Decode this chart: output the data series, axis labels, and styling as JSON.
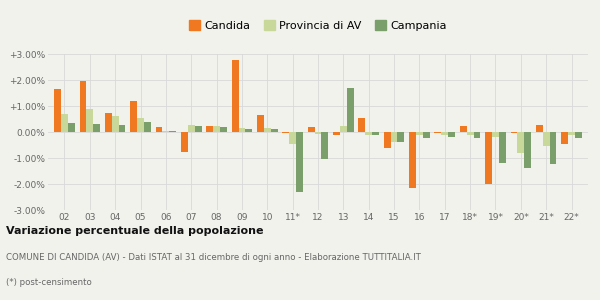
{
  "categories": [
    "02",
    "03",
    "04",
    "05",
    "06",
    "07",
    "08",
    "09",
    "10",
    "11*",
    "12",
    "13",
    "14",
    "15",
    "16",
    "17",
    "18*",
    "19*",
    "20*",
    "21*",
    "22*"
  ],
  "candida": [
    1.65,
    1.95,
    0.72,
    1.18,
    0.18,
    -0.78,
    0.22,
    2.75,
    0.65,
    -0.05,
    0.18,
    -0.12,
    0.55,
    -0.6,
    -2.15,
    -0.03,
    0.22,
    -2.0,
    -0.05,
    0.28,
    -0.45
  ],
  "provincia": [
    0.7,
    0.9,
    0.6,
    0.52,
    0.02,
    0.28,
    0.25,
    0.15,
    0.15,
    -0.48,
    -0.08,
    0.22,
    -0.12,
    -0.4,
    -0.12,
    -0.12,
    -0.1,
    -0.2,
    -0.82,
    -0.52,
    -0.1
  ],
  "campania": [
    0.35,
    0.32,
    0.28,
    0.38,
    0.02,
    0.22,
    0.2,
    0.1,
    0.1,
    -2.3,
    -1.05,
    1.7,
    -0.12,
    -0.38,
    -0.22,
    -0.2,
    -0.22,
    -1.18,
    -1.38,
    -1.22,
    -0.22
  ],
  "color_candida": "#f07820",
  "color_provincia": "#c8d89a",
  "color_campania": "#7a9f6a",
  "ylim": [
    -3.0,
    3.0
  ],
  "yticks": [
    -3.0,
    -2.0,
    -1.0,
    0.0,
    1.0,
    2.0,
    3.0
  ],
  "ytick_labels": [
    "-3.00%",
    "-2.00%",
    "-1.00%",
    "0.00%",
    "+1.00%",
    "+2.00%",
    "+3.00%"
  ],
  "title": "Variazione percentuale della popolazione",
  "caption1": "COMUNE DI CANDIDA (AV) - Dati ISTAT al 31 dicembre di ogni anno - Elaborazione TUTTITALIA.IT",
  "caption2": "(*) post-censimento",
  "legend_labels": [
    "Candida",
    "Provincia di AV",
    "Campania"
  ],
  "bar_width": 0.27,
  "bg_color": "#f2f2ed",
  "grid_color": "#d8d8d8",
  "text_color_title": "#111111",
  "text_color_caption": "#666666"
}
